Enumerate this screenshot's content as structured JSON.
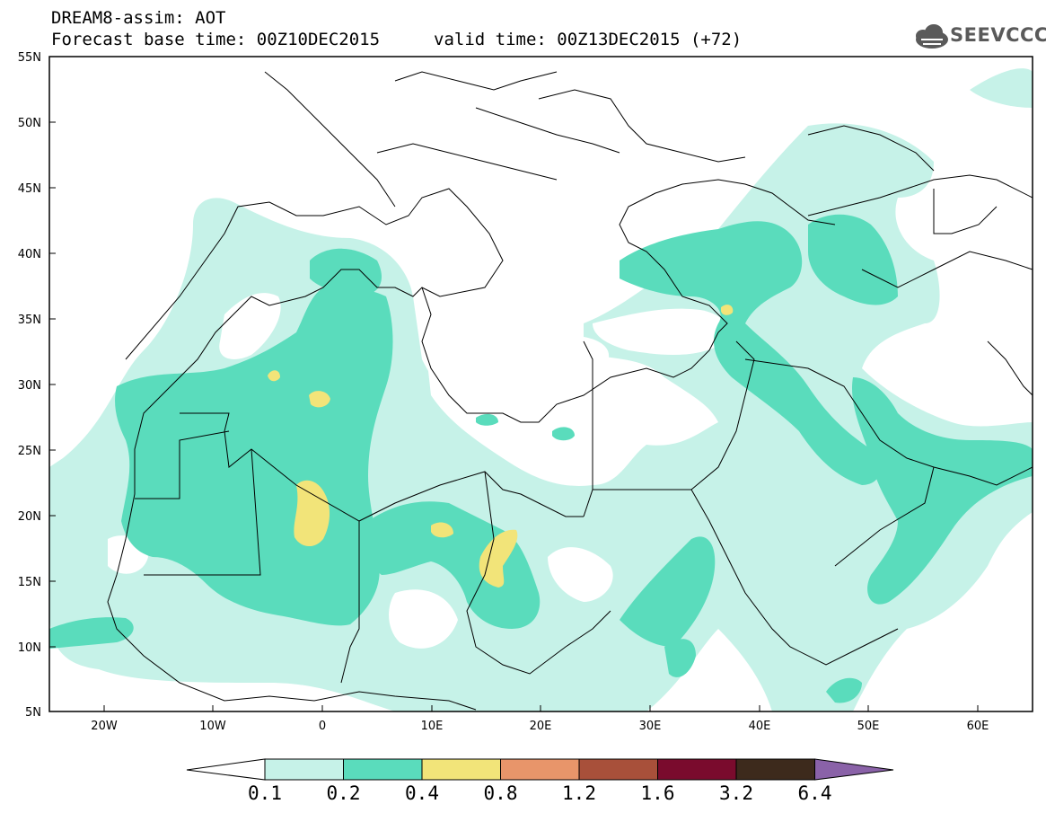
{
  "header": {
    "title": "DREAM8-assim: AOT",
    "base_time": "Forecast base time: 00Z10DEC2015",
    "valid_time": "valid time: 00Z13DEC2015 (+72)"
  },
  "logo": {
    "text": "SEEVCCC",
    "icon": "cloud-icon"
  },
  "map": {
    "lon_range": [
      -25,
      65
    ],
    "lat_range": [
      5,
      55
    ],
    "lat_ticks": [
      "55N",
      "50N",
      "45N",
      "40N",
      "35N",
      "30N",
      "25N",
      "20N",
      "15N",
      "10N",
      "5N"
    ],
    "lon_ticks": [
      "20W",
      "10W",
      "0",
      "10E",
      "20E",
      "30E",
      "40E",
      "50E",
      "60E"
    ],
    "colors": {
      "very_light": "#c6f2e8",
      "medium": "#5adcbc",
      "yellow": "#f2e479",
      "border": "#000000"
    }
  },
  "colorbar": {
    "labels": [
      "0.1",
      "0.2",
      "0.4",
      "0.8",
      "1.2",
      "1.6",
      "3.2",
      "6.4"
    ],
    "colors": [
      "#ffffff",
      "#c6f2e8",
      "#5adcbc",
      "#f2e479",
      "#e8956a",
      "#a8503a",
      "#7a0b2d",
      "#3d2a1c",
      "#8a62a8"
    ]
  }
}
